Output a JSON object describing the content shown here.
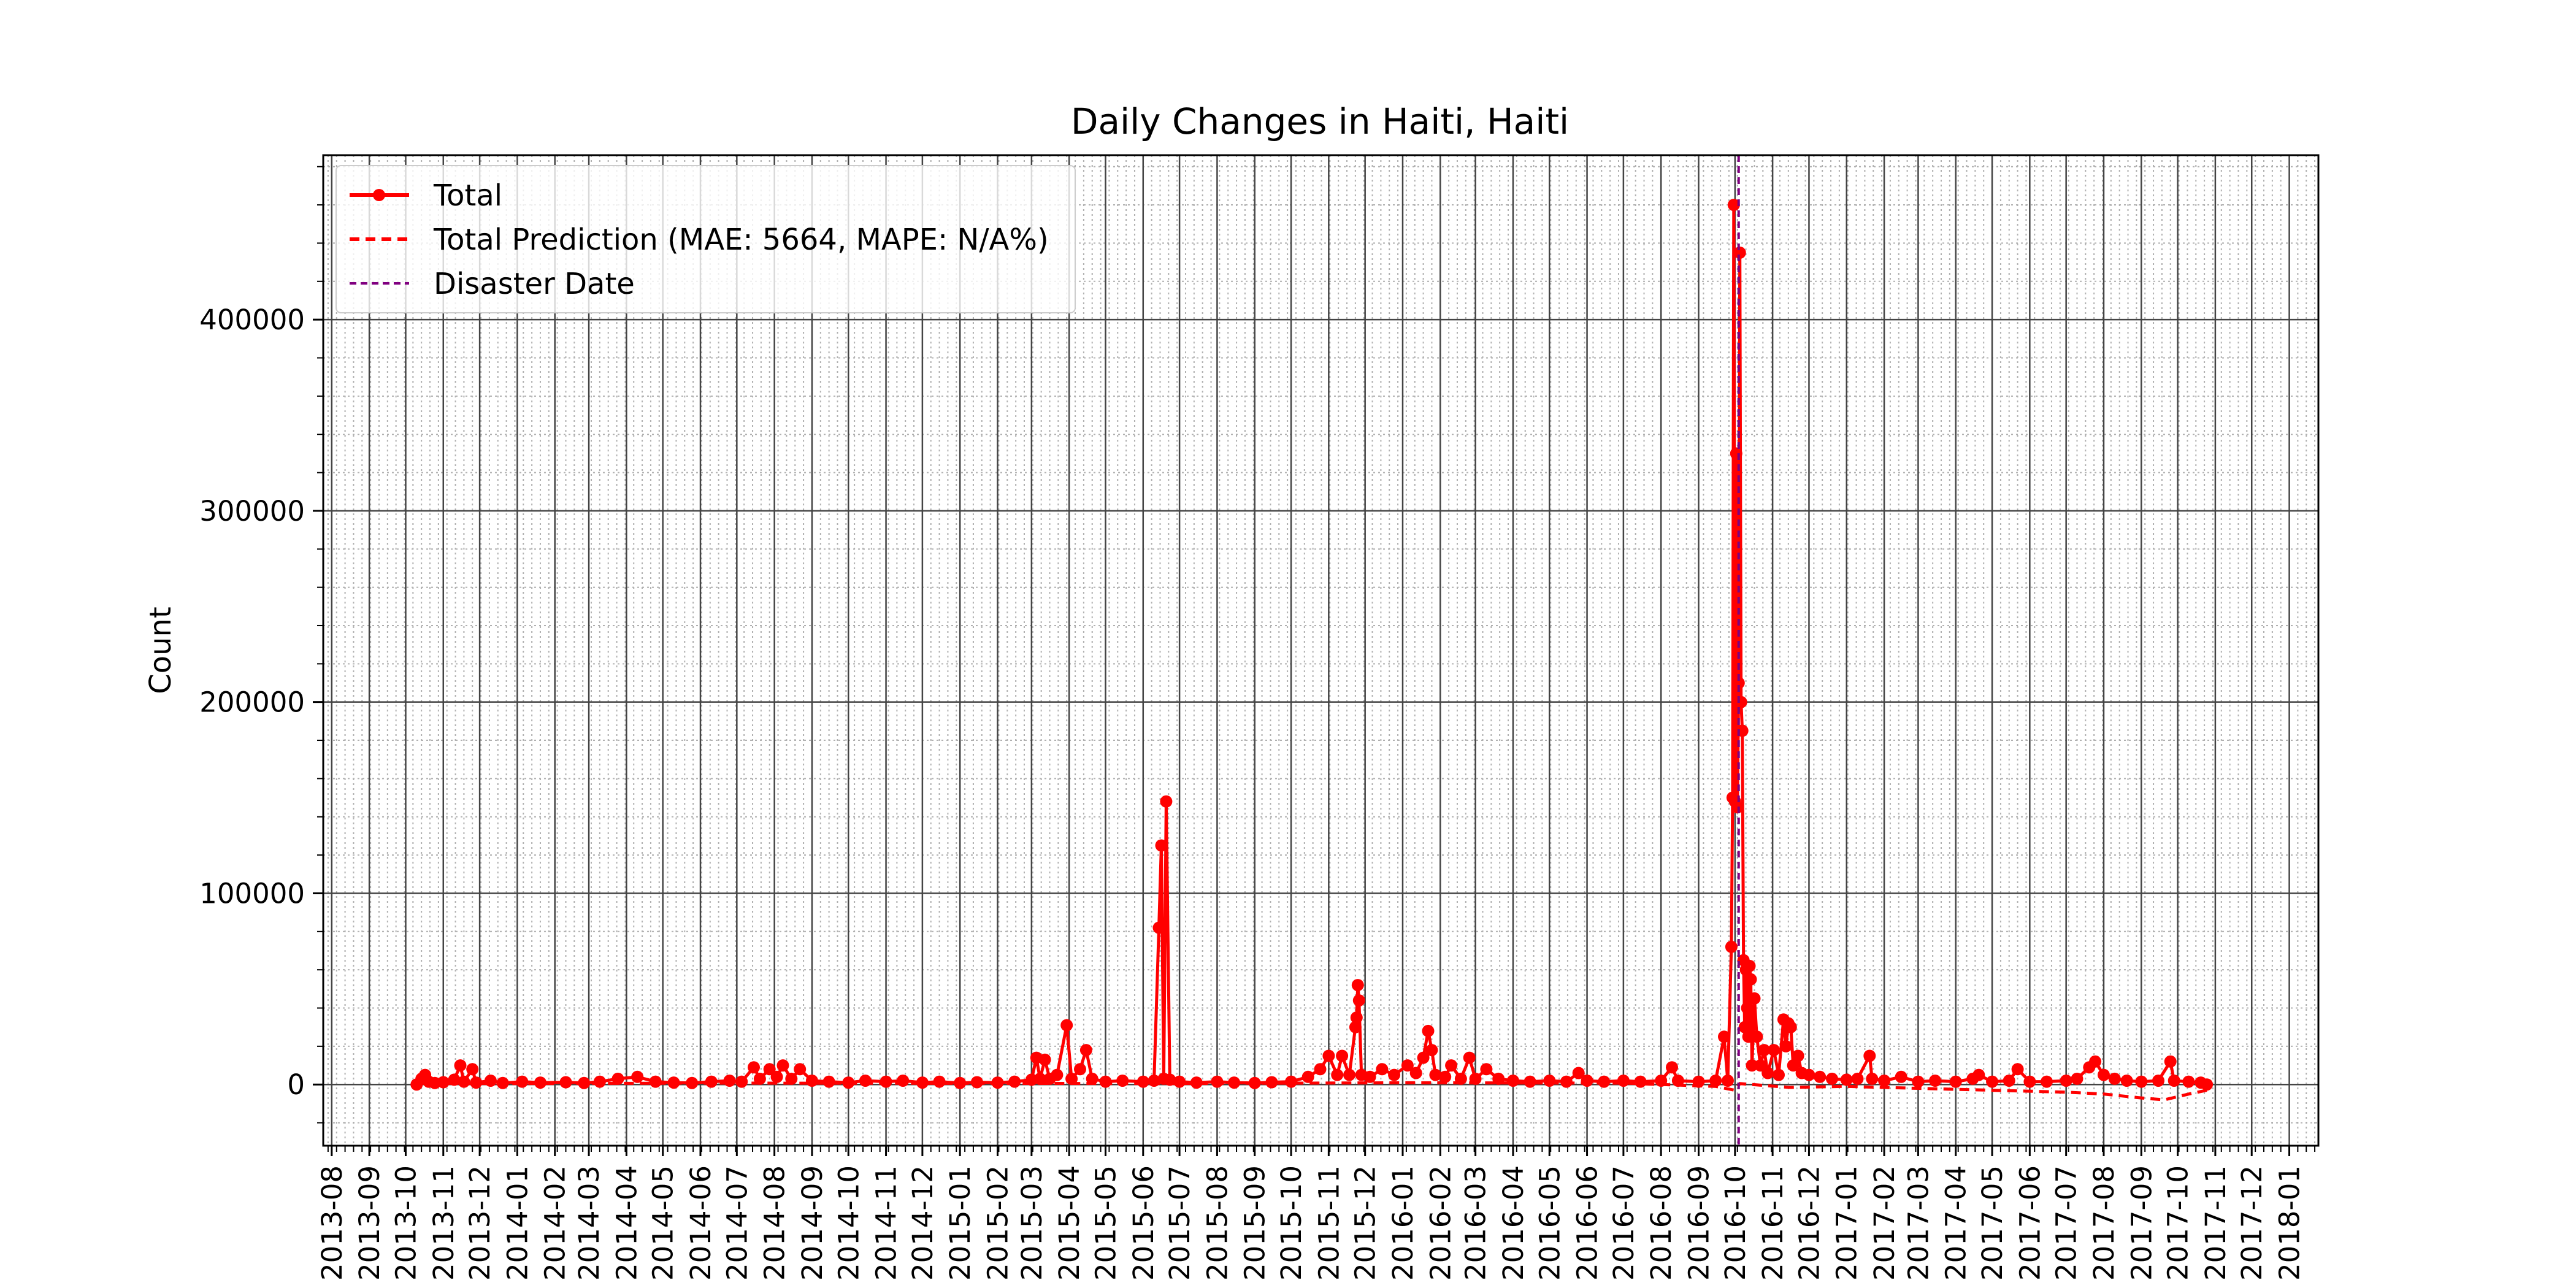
{
  "chart_data": {
    "type": "line",
    "title": "Daily Changes in Haiti, Haiti",
    "xlabel": "",
    "ylabel": "Count",
    "x_range": [
      "2013-07-25",
      "2018-01-25"
    ],
    "ylim": [
      -32000,
      486000
    ],
    "grid": true,
    "minor_grid": true,
    "legend_position": "top-left",
    "colors": {
      "total": "#ff0000",
      "prediction": "#ff0000",
      "disaster": "#800080",
      "grid_major": "#444444",
      "grid_minor": "#b0b0b0"
    },
    "y_ticks": [
      {
        "value": 0,
        "label": "0"
      },
      {
        "value": 100000,
        "label": "100000"
      },
      {
        "value": 200000,
        "label": "200000"
      },
      {
        "value": 300000,
        "label": "300000"
      },
      {
        "value": 400000,
        "label": "400000"
      }
    ],
    "x_ticks": [
      "2013-08",
      "2013-09",
      "2013-10",
      "2013-11",
      "2013-12",
      "2014-01",
      "2014-02",
      "2014-03",
      "2014-04",
      "2014-05",
      "2014-06",
      "2014-07",
      "2014-08",
      "2014-09",
      "2014-10",
      "2014-11",
      "2014-12",
      "2015-01",
      "2015-02",
      "2015-03",
      "2015-04",
      "2015-05",
      "2015-06",
      "2015-07",
      "2015-08",
      "2015-09",
      "2015-10",
      "2015-11",
      "2015-12",
      "2016-01",
      "2016-02",
      "2016-03",
      "2016-04",
      "2016-05",
      "2016-06",
      "2016-07",
      "2016-08",
      "2016-09",
      "2016-10",
      "2016-11",
      "2016-12",
      "2017-01",
      "2017-02",
      "2017-03",
      "2017-04",
      "2017-05",
      "2017-06",
      "2017-07",
      "2017-08",
      "2017-09",
      "2017-10",
      "2017-11",
      "2017-12",
      "2018-01"
    ],
    "legend": [
      {
        "label": "Total",
        "style": "solid-marker"
      },
      {
        "label": "Total Prediction (MAE: 5664, MAPE: N/A%)",
        "style": "dashed"
      },
      {
        "label": "Disaster Date",
        "style": "dashed-thin"
      }
    ],
    "disaster_date": "2016-10-04",
    "series": [
      {
        "name": "Total",
        "points": [
          [
            "2013-10-10",
            0
          ],
          [
            "2013-10-14",
            3000
          ],
          [
            "2013-10-17",
            5000
          ],
          [
            "2013-10-20",
            1500
          ],
          [
            "2013-10-25",
            800
          ],
          [
            "2013-11-01",
            1200
          ],
          [
            "2013-11-10",
            2500
          ],
          [
            "2013-11-15",
            10000
          ],
          [
            "2013-11-18",
            1500
          ],
          [
            "2013-11-25",
            8000
          ],
          [
            "2013-11-28",
            1000
          ],
          [
            "2013-12-10",
            2000
          ],
          [
            "2013-12-20",
            800
          ],
          [
            "2014-01-05",
            1500
          ],
          [
            "2014-01-20",
            1000
          ],
          [
            "2014-02-10",
            1200
          ],
          [
            "2014-02-25",
            800
          ],
          [
            "2014-03-10",
            1500
          ],
          [
            "2014-03-25",
            3000
          ],
          [
            "2014-04-10",
            4000
          ],
          [
            "2014-04-25",
            1500
          ],
          [
            "2014-05-10",
            1000
          ],
          [
            "2014-05-25",
            800
          ],
          [
            "2014-06-10",
            1500
          ],
          [
            "2014-06-25",
            2000
          ],
          [
            "2014-07-05",
            1500
          ],
          [
            "2014-07-15",
            9000
          ],
          [
            "2014-07-20",
            3000
          ],
          [
            "2014-07-28",
            8000
          ],
          [
            "2014-08-03",
            4000
          ],
          [
            "2014-08-08",
            10000
          ],
          [
            "2014-08-15",
            3000
          ],
          [
            "2014-08-22",
            8000
          ],
          [
            "2014-09-01",
            2000
          ],
          [
            "2014-09-15",
            1500
          ],
          [
            "2014-10-01",
            1000
          ],
          [
            "2014-10-15",
            2000
          ],
          [
            "2014-11-01",
            1500
          ],
          [
            "2014-11-15",
            2000
          ],
          [
            "2014-12-01",
            1000
          ],
          [
            "2014-12-15",
            1500
          ],
          [
            "2015-01-01",
            800
          ],
          [
            "2015-01-15",
            1200
          ],
          [
            "2015-02-01",
            1000
          ],
          [
            "2015-02-15",
            1500
          ],
          [
            "2015-03-01",
            2500
          ],
          [
            "2015-03-05",
            14000
          ],
          [
            "2015-03-08",
            3000
          ],
          [
            "2015-03-12",
            13000
          ],
          [
            "2015-03-16",
            3000
          ],
          [
            "2015-03-22",
            5000
          ],
          [
            "2015-03-30",
            31000
          ],
          [
            "2015-04-03",
            3000
          ],
          [
            "2015-04-10",
            8000
          ],
          [
            "2015-04-15",
            18000
          ],
          [
            "2015-04-20",
            3000
          ],
          [
            "2015-05-01",
            1500
          ],
          [
            "2015-05-15",
            2000
          ],
          [
            "2015-06-01",
            1500
          ],
          [
            "2015-06-10",
            2000
          ],
          [
            "2015-06-14",
            82000
          ],
          [
            "2015-06-16",
            125000
          ],
          [
            "2015-06-18",
            3000
          ],
          [
            "2015-06-20",
            148000
          ],
          [
            "2015-06-23",
            2500
          ],
          [
            "2015-07-01",
            1500
          ],
          [
            "2015-07-15",
            1000
          ],
          [
            "2015-08-01",
            1500
          ],
          [
            "2015-08-15",
            1000
          ],
          [
            "2015-09-01",
            800
          ],
          [
            "2015-09-15",
            1200
          ],
          [
            "2015-10-01",
            1500
          ],
          [
            "2015-10-15",
            4000
          ],
          [
            "2015-10-25",
            8000
          ],
          [
            "2015-11-01",
            15000
          ],
          [
            "2015-11-08",
            5000
          ],
          [
            "2015-11-12",
            15000
          ],
          [
            "2015-11-18",
            5000
          ],
          [
            "2015-11-23",
            30000
          ],
          [
            "2015-11-24",
            35000
          ],
          [
            "2015-11-25",
            52000
          ],
          [
            "2015-11-26",
            44000
          ],
          [
            "2015-11-28",
            5000
          ],
          [
            "2015-12-05",
            4000
          ],
          [
            "2015-12-15",
            8000
          ],
          [
            "2015-12-25",
            5000
          ],
          [
            "2016-01-05",
            10000
          ],
          [
            "2016-01-12",
            6000
          ],
          [
            "2016-01-18",
            14000
          ],
          [
            "2016-01-22",
            28000
          ],
          [
            "2016-01-25",
            18000
          ],
          [
            "2016-01-28",
            5000
          ],
          [
            "2016-02-05",
            4000
          ],
          [
            "2016-02-10",
            10000
          ],
          [
            "2016-02-18",
            3000
          ],
          [
            "2016-02-25",
            14000
          ],
          [
            "2016-03-01",
            3000
          ],
          [
            "2016-03-10",
            8000
          ],
          [
            "2016-03-20",
            3000
          ],
          [
            "2016-04-01",
            2000
          ],
          [
            "2016-04-15",
            1500
          ],
          [
            "2016-05-01",
            2000
          ],
          [
            "2016-05-15",
            1500
          ],
          [
            "2016-05-25",
            6000
          ],
          [
            "2016-06-01",
            2000
          ],
          [
            "2016-06-15",
            1500
          ],
          [
            "2016-07-01",
            2000
          ],
          [
            "2016-07-15",
            1500
          ],
          [
            "2016-08-01",
            2000
          ],
          [
            "2016-08-10",
            9000
          ],
          [
            "2016-08-15",
            2000
          ],
          [
            "2016-09-01",
            1500
          ],
          [
            "2016-09-15",
            2000
          ],
          [
            "2016-09-22",
            25000
          ],
          [
            "2016-09-25",
            2000
          ],
          [
            "2016-09-28",
            72000
          ],
          [
            "2016-09-29",
            150000
          ],
          [
            "2016-09-30",
            460000
          ],
          [
            "2016-10-01",
            148000
          ],
          [
            "2016-10-02",
            330000
          ],
          [
            "2016-10-03",
            145000
          ],
          [
            "2016-10-04",
            210000
          ],
          [
            "2016-10-05",
            435000
          ],
          [
            "2016-10-06",
            200000
          ],
          [
            "2016-10-07",
            185000
          ],
          [
            "2016-10-08",
            65000
          ],
          [
            "2016-10-09",
            30000
          ],
          [
            "2016-10-10",
            60000
          ],
          [
            "2016-10-11",
            40000
          ],
          [
            "2016-10-12",
            25000
          ],
          [
            "2016-10-13",
            62000
          ],
          [
            "2016-10-14",
            55000
          ],
          [
            "2016-10-15",
            10000
          ],
          [
            "2016-10-17",
            45000
          ],
          [
            "2016-10-19",
            25000
          ],
          [
            "2016-10-22",
            10000
          ],
          [
            "2016-10-25",
            18000
          ],
          [
            "2016-10-28",
            6000
          ],
          [
            "2016-11-02",
            18000
          ],
          [
            "2016-11-06",
            5000
          ],
          [
            "2016-11-10",
            34000
          ],
          [
            "2016-11-12",
            20000
          ],
          [
            "2016-11-14",
            32000
          ],
          [
            "2016-11-16",
            30000
          ],
          [
            "2016-11-18",
            10000
          ],
          [
            "2016-11-22",
            15000
          ],
          [
            "2016-11-25",
            6000
          ],
          [
            "2016-12-01",
            5000
          ],
          [
            "2016-12-10",
            4000
          ],
          [
            "2016-12-20",
            3000
          ],
          [
            "2017-01-01",
            2500
          ],
          [
            "2017-01-10",
            3000
          ],
          [
            "2017-01-20",
            15000
          ],
          [
            "2017-01-22",
            3000
          ],
          [
            "2017-02-01",
            2000
          ],
          [
            "2017-02-15",
            4000
          ],
          [
            "2017-03-01",
            1500
          ],
          [
            "2017-03-15",
            2000
          ],
          [
            "2017-04-01",
            1500
          ],
          [
            "2017-04-15",
            3000
          ],
          [
            "2017-04-20",
            5000
          ],
          [
            "2017-05-01",
            1500
          ],
          [
            "2017-05-15",
            2000
          ],
          [
            "2017-05-22",
            8000
          ],
          [
            "2017-06-01",
            1500
          ],
          [
            "2017-06-15",
            1500
          ],
          [
            "2017-07-01",
            2000
          ],
          [
            "2017-07-10",
            3000
          ],
          [
            "2017-07-20",
            9000
          ],
          [
            "2017-07-25",
            12000
          ],
          [
            "2017-08-01",
            5000
          ],
          [
            "2017-08-10",
            3000
          ],
          [
            "2017-08-20",
            2000
          ],
          [
            "2017-09-01",
            1500
          ],
          [
            "2017-09-15",
            2000
          ],
          [
            "2017-09-25",
            12000
          ],
          [
            "2017-09-28",
            2000
          ],
          [
            "2017-10-10",
            1500
          ],
          [
            "2017-10-20",
            1000
          ],
          [
            "2017-10-25",
            0
          ]
        ]
      },
      {
        "name": "Total Prediction (MAE: 5664, MAPE: N/A%)",
        "points": [
          [
            "2013-10-10",
            600
          ],
          [
            "2014-01-01",
            500
          ],
          [
            "2014-07-01",
            700
          ],
          [
            "2015-01-01",
            600
          ],
          [
            "2015-07-01",
            500
          ],
          [
            "2016-01-01",
            900
          ],
          [
            "2016-07-01",
            700
          ],
          [
            "2016-09-15",
            -1000
          ],
          [
            "2016-10-01",
            -3000
          ],
          [
            "2016-10-05",
            500
          ],
          [
            "2016-11-15",
            -1500
          ],
          [
            "2017-01-01",
            -1000
          ],
          [
            "2017-03-01",
            -2000
          ],
          [
            "2017-05-01",
            -3000
          ],
          [
            "2017-07-01",
            -4000
          ],
          [
            "2017-08-01",
            -5000
          ],
          [
            "2017-09-01",
            -7000
          ],
          [
            "2017-09-20",
            -8000
          ],
          [
            "2017-10-10",
            -5000
          ],
          [
            "2017-10-25",
            -3000
          ]
        ]
      }
    ]
  }
}
